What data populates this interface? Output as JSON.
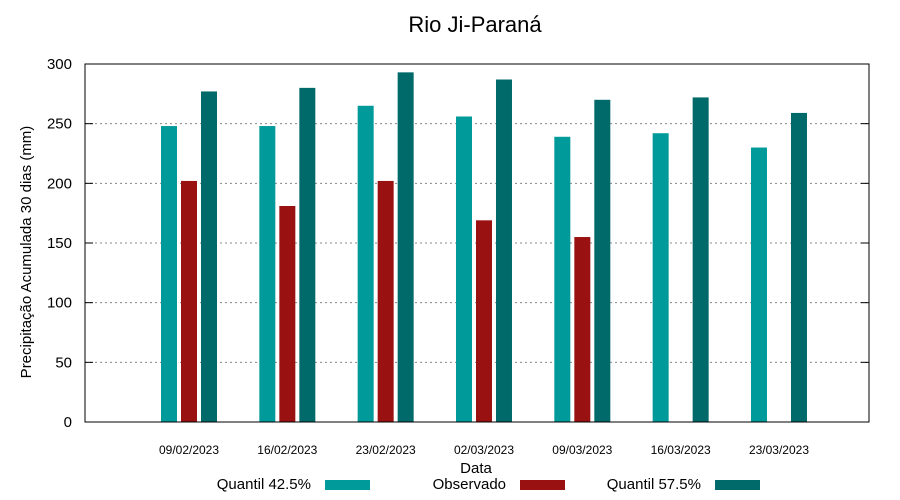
{
  "chart_data": {
    "type": "bar",
    "title": "Rio Ji-Paraná",
    "xlabel": "Data",
    "ylabel": "Precipitação Acumulada 30 dias (mm)",
    "ylim": [
      0,
      300
    ],
    "yticks": [
      0,
      50,
      100,
      150,
      200,
      250,
      300
    ],
    "grid": true,
    "categories": [
      "09/02/2023",
      "16/02/2023",
      "23/02/2023",
      "02/03/2023",
      "09/03/2023",
      "16/03/2023",
      "23/03/2023"
    ],
    "series": [
      {
        "name": "Quantil 42.5%",
        "color": "#009a9a",
        "values": [
          248,
          248,
          265,
          256,
          239,
          242,
          230
        ]
      },
      {
        "name": "Observado",
        "color": "#991111",
        "values": [
          202,
          181,
          202,
          169,
          155,
          null,
          null
        ]
      },
      {
        "name": "Quantil 57.5%",
        "color": "#006a6a",
        "values": [
          277,
          280,
          293,
          287,
          270,
          272,
          259
        ]
      }
    ]
  }
}
